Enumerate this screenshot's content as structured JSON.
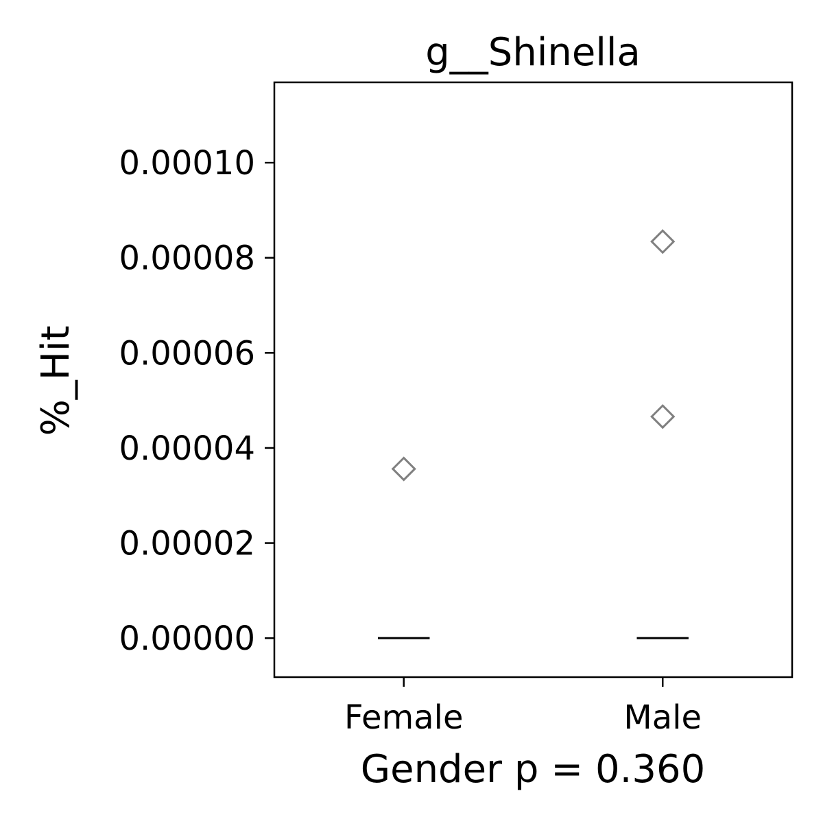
{
  "chart_data": {
    "type": "box",
    "title": "g__Shinella",
    "xlabel": "Gender p = 0.360",
    "ylabel": "%_Hit",
    "categories": [
      "Female",
      "Male"
    ],
    "boxes": [
      {
        "median": 0,
        "q1": 0,
        "q3": 0,
        "whislo": 0,
        "whishi": 0,
        "fliers": [
          3.56e-05
        ]
      },
      {
        "median": 0,
        "q1": 0,
        "q3": 0,
        "whislo": 0,
        "whishi": 0,
        "fliers": [
          8.34e-05,
          4.66e-05
        ]
      }
    ],
    "flier_color": "#808080",
    "box_color": "#000000",
    "ylim": [
      -8.2e-06,
      0.0001169
    ],
    "yticks": [
      {
        "value": 0,
        "label": "0.00000"
      },
      {
        "value": 2e-05,
        "label": "0.00002"
      },
      {
        "value": 4e-05,
        "label": "0.00004"
      },
      {
        "value": 6e-05,
        "label": "0.00006"
      },
      {
        "value": 8e-05,
        "label": "0.00008"
      },
      {
        "value": 0.0001,
        "label": "0.00010"
      }
    ]
  }
}
